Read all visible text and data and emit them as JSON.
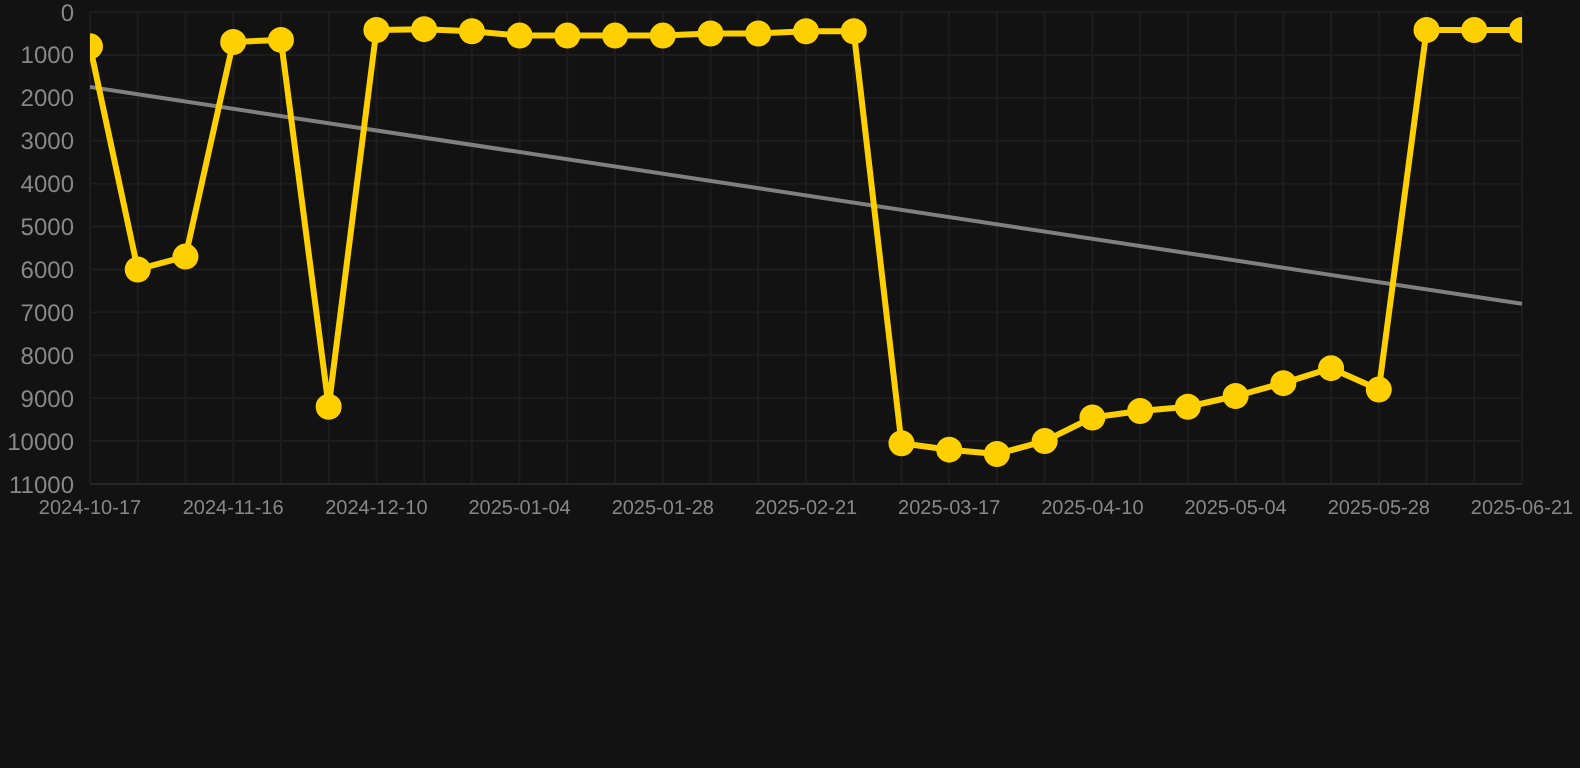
{
  "chart_data": {
    "type": "line",
    "categories": [
      "2024-10-17",
      null,
      null,
      "2024-11-16",
      null,
      null,
      "2024-12-10",
      null,
      null,
      "2025-01-04",
      null,
      null,
      "2025-01-28",
      null,
      null,
      "2025-02-21",
      null,
      null,
      "2025-03-17",
      null,
      null,
      "2025-04-10",
      null,
      null,
      "2025-05-04",
      null,
      null,
      "2025-05-28",
      null,
      null,
      "2025-06-21"
    ],
    "series": [
      {
        "color": "#ffd000",
        "marker": "circle",
        "values": [
          800,
          6000,
          5700,
          700,
          650,
          9200,
          420,
          400,
          450,
          550,
          550,
          550,
          550,
          500,
          500,
          450,
          450,
          10050,
          10200,
          10300,
          10000,
          9450,
          9300,
          9200,
          8950,
          8650,
          8300,
          8800,
          420,
          420,
          420
        ]
      },
      {
        "color": "#808080",
        "marker": "none",
        "values": [
          1750,
          null,
          null,
          null,
          null,
          null,
          null,
          null,
          null,
          null,
          null,
          null,
          null,
          null,
          null,
          null,
          null,
          null,
          null,
          null,
          null,
          null,
          null,
          null,
          null,
          null,
          null,
          null,
          null,
          null,
          6800
        ]
      }
    ],
    "ylim": [
      11000,
      0
    ],
    "yticks": [
      0,
      1000,
      2000,
      3000,
      4000,
      5000,
      6000,
      7000,
      8000,
      9000,
      10000,
      11000
    ],
    "grid": true
  }
}
